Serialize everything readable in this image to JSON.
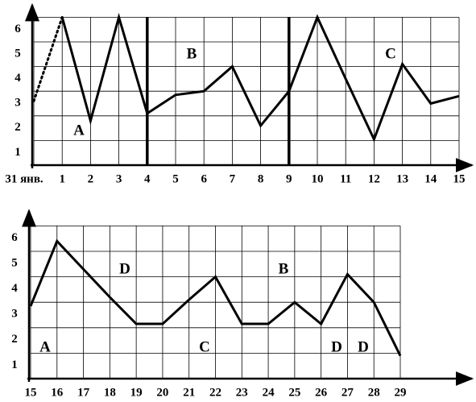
{
  "chart_data": [
    {
      "type": "line",
      "categories": [
        "31 янв.",
        "1",
        "2",
        "3",
        "4",
        "5",
        "6",
        "7",
        "8",
        "9",
        "10",
        "11",
        "12",
        "13",
        "14",
        "15"
      ],
      "series": [
        {
          "color": "#000000",
          "line_style": "dotted",
          "values": [
            2.6,
            6,
            null,
            null,
            null,
            null,
            null,
            null,
            null,
            null,
            null,
            null,
            null,
            null,
            null,
            null
          ]
        },
        {
          "color": "#000000",
          "line_style": "solid",
          "values": [
            null,
            6,
            1.8,
            6,
            2.1,
            2.85,
            3,
            4,
            1.6,
            3,
            6,
            3.5,
            1.05,
            4.1,
            2.5,
            2.8
          ]
        }
      ],
      "ylim": [
        0,
        6.5
      ],
      "yticks": [
        1,
        2,
        3,
        4,
        5,
        6
      ],
      "grid": true,
      "annotations": [
        "A",
        "B",
        "C"
      ]
    },
    {
      "type": "line",
      "categories": [
        "15",
        "16",
        "17",
        "18",
        "19",
        "20",
        "21",
        "22",
        "23",
        "24",
        "25",
        "26",
        "27",
        "28",
        "29"
      ],
      "series": [
        {
          "color": "#000000",
          "line_style": "solid",
          "values": [
            2.85,
            5.4,
            4.3,
            3.2,
            2.15,
            2.15,
            3.1,
            4,
            2.15,
            2.15,
            3,
            2.15,
            4.1,
            3,
            0.9
          ]
        }
      ],
      "ylim": [
        0,
        6.6
      ],
      "yticks": [
        1,
        2,
        3,
        4,
        5,
        6
      ],
      "grid": true,
      "annotations": [
        "D",
        "B",
        "A",
        "C",
        "D",
        "D"
      ]
    }
  ]
}
